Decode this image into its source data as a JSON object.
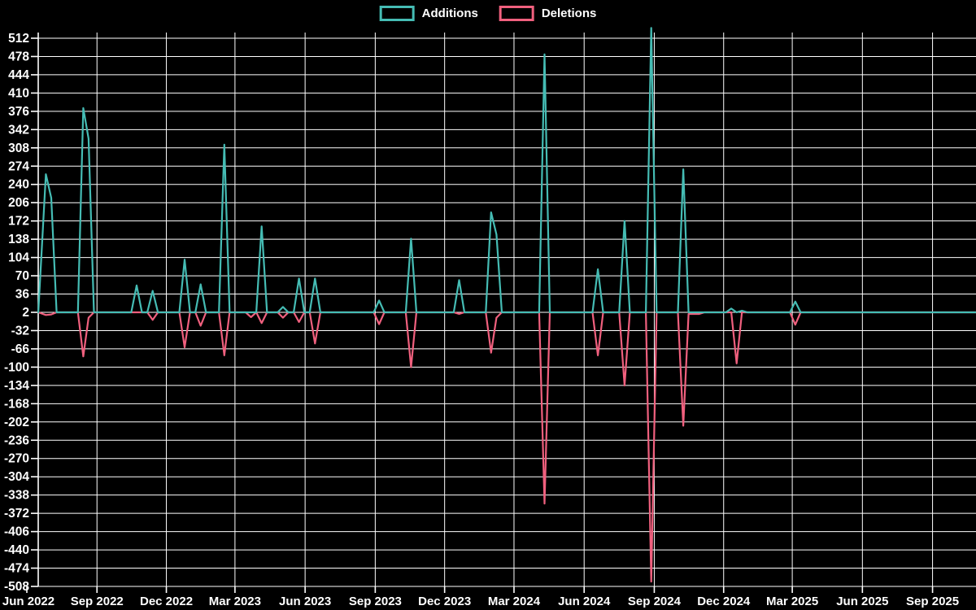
{
  "legend": {
    "additions_label": "Additions",
    "deletions_label": "Deletions"
  },
  "colors": {
    "background": "#000000",
    "grid": "#ffffff",
    "text": "#ffffff",
    "additions": "#45bcb4",
    "deletions": "#f0607e"
  },
  "chart_data": {
    "type": "line",
    "title": "",
    "xlabel": "",
    "ylabel": "",
    "legend_position": "top-center",
    "grid": true,
    "y_ticks": [
      512,
      478,
      444,
      410,
      376,
      342,
      308,
      274,
      240,
      206,
      172,
      138,
      104,
      70,
      36,
      2,
      -32,
      -66,
      -100,
      -134,
      -168,
      -202,
      -236,
      -270,
      -304,
      -338,
      -372,
      -406,
      -440,
      -474,
      -508
    ],
    "ylim": [
      -508,
      512
    ],
    "x_ticks": [
      {
        "label": "Jun 2022",
        "date": "2022-06-01"
      },
      {
        "label": "Sep 2022",
        "date": "2022-09-01"
      },
      {
        "label": "Dec 2022",
        "date": "2022-12-01"
      },
      {
        "label": "Mar 2023",
        "date": "2023-03-01"
      },
      {
        "label": "Jun 2023",
        "date": "2023-06-01"
      },
      {
        "label": "Sep 2023",
        "date": "2023-09-01"
      },
      {
        "label": "Dec 2023",
        "date": "2023-12-01"
      },
      {
        "label": "Mar 2024",
        "date": "2024-03-01"
      },
      {
        "label": "Jun 2024",
        "date": "2024-06-01"
      },
      {
        "label": "Sep 2024",
        "date": "2024-09-01"
      },
      {
        "label": "Dec 2024",
        "date": "2024-12-01"
      },
      {
        "label": "Mar 2025",
        "date": "2025-03-01"
      },
      {
        "label": "Jun 2025",
        "date": "2025-06-01"
      },
      {
        "label": "Sep 2025",
        "date": "2025-09-01"
      }
    ],
    "x_range": {
      "start": "2022-06-01",
      "end": "2025-10-28",
      "data_start": "2022-06-16"
    },
    "series": [
      {
        "name": "Additions",
        "key": "a",
        "color": "#45bcb4"
      },
      {
        "name": "Deletions",
        "key": "d",
        "color": "#f0607e"
      }
    ],
    "baseline": 0,
    "points": [
      {
        "date": "2022-06-16",
        "a": 0,
        "d": 0
      },
      {
        "date": "2022-06-26",
        "a": 257,
        "d": -5
      },
      {
        "date": "2022-07-03",
        "a": 213,
        "d": -4
      },
      {
        "date": "2022-07-10",
        "a": 0,
        "d": 0
      },
      {
        "date": "2022-08-07",
        "a": 0,
        "d": 0
      },
      {
        "date": "2022-08-14",
        "a": 380,
        "d": -82
      },
      {
        "date": "2022-08-21",
        "a": 323,
        "d": -10
      },
      {
        "date": "2022-08-28",
        "a": 0,
        "d": 0
      },
      {
        "date": "2022-10-16",
        "a": 0,
        "d": 0
      },
      {
        "date": "2022-10-23",
        "a": 50,
        "d": 0
      },
      {
        "date": "2022-10-30",
        "a": 0,
        "d": 0
      },
      {
        "date": "2022-11-06",
        "a": 0,
        "d": 0
      },
      {
        "date": "2022-11-13",
        "a": 40,
        "d": -14
      },
      {
        "date": "2022-11-20",
        "a": 0,
        "d": 0
      },
      {
        "date": "2022-12-18",
        "a": 0,
        "d": 0
      },
      {
        "date": "2022-12-25",
        "a": 98,
        "d": -65
      },
      {
        "date": "2023-01-01",
        "a": 0,
        "d": 0
      },
      {
        "date": "2023-01-08",
        "a": 0,
        "d": 0
      },
      {
        "date": "2023-01-15",
        "a": 52,
        "d": -25
      },
      {
        "date": "2023-01-22",
        "a": 0,
        "d": 0
      },
      {
        "date": "2023-02-08",
        "a": 0,
        "d": 0
      },
      {
        "date": "2023-02-15",
        "a": 312,
        "d": -80
      },
      {
        "date": "2023-02-22",
        "a": 0,
        "d": 0
      },
      {
        "date": "2023-03-15",
        "a": 0,
        "d": 0
      },
      {
        "date": "2023-03-22",
        "a": 0,
        "d": -9
      },
      {
        "date": "2023-03-29",
        "a": 0,
        "d": 0
      },
      {
        "date": "2023-04-05",
        "a": 160,
        "d": -20
      },
      {
        "date": "2023-04-12",
        "a": 0,
        "d": 0
      },
      {
        "date": "2023-04-26",
        "a": 0,
        "d": 0
      },
      {
        "date": "2023-05-03",
        "a": 10,
        "d": -10
      },
      {
        "date": "2023-05-10",
        "a": 0,
        "d": 0
      },
      {
        "date": "2023-05-17",
        "a": 0,
        "d": 0
      },
      {
        "date": "2023-05-24",
        "a": 63,
        "d": -18
      },
      {
        "date": "2023-05-31",
        "a": 0,
        "d": 0
      },
      {
        "date": "2023-06-07",
        "a": 0,
        "d": 0
      },
      {
        "date": "2023-06-14",
        "a": 63,
        "d": -58
      },
      {
        "date": "2023-06-21",
        "a": 0,
        "d": 0
      },
      {
        "date": "2023-08-30",
        "a": 0,
        "d": 0
      },
      {
        "date": "2023-09-06",
        "a": 22,
        "d": -22
      },
      {
        "date": "2023-09-13",
        "a": 0,
        "d": 0
      },
      {
        "date": "2023-10-11",
        "a": 0,
        "d": 0
      },
      {
        "date": "2023-10-18",
        "a": 137,
        "d": -102
      },
      {
        "date": "2023-10-25",
        "a": 0,
        "d": 0
      },
      {
        "date": "2023-12-13",
        "a": 0,
        "d": 0
      },
      {
        "date": "2023-12-20",
        "a": 60,
        "d": -3
      },
      {
        "date": "2023-12-27",
        "a": 0,
        "d": 0
      },
      {
        "date": "2024-01-24",
        "a": 0,
        "d": 0
      },
      {
        "date": "2024-01-31",
        "a": 186,
        "d": -75
      },
      {
        "date": "2024-02-07",
        "a": 145,
        "d": -10
      },
      {
        "date": "2024-02-14",
        "a": 0,
        "d": 0
      },
      {
        "date": "2024-04-03",
        "a": 0,
        "d": 0
      },
      {
        "date": "2024-04-10",
        "a": 480,
        "d": -356
      },
      {
        "date": "2024-04-17",
        "a": 0,
        "d": 0
      },
      {
        "date": "2024-06-12",
        "a": 0,
        "d": 0
      },
      {
        "date": "2024-06-19",
        "a": 80,
        "d": -80
      },
      {
        "date": "2024-06-26",
        "a": 0,
        "d": 0
      },
      {
        "date": "2024-07-17",
        "a": 0,
        "d": 0
      },
      {
        "date": "2024-07-24",
        "a": 170,
        "d": -136
      },
      {
        "date": "2024-07-31",
        "a": 0,
        "d": 0
      },
      {
        "date": "2024-08-21",
        "a": 0,
        "d": 0
      },
      {
        "date": "2024-08-28",
        "a": 529,
        "d": -501
      },
      {
        "date": "2024-09-04",
        "a": 0,
        "d": 0
      },
      {
        "date": "2024-10-02",
        "a": 0,
        "d": 0
      },
      {
        "date": "2024-10-09",
        "a": 266,
        "d": -211
      },
      {
        "date": "2024-10-16",
        "a": 0,
        "d": -3
      },
      {
        "date": "2024-10-30",
        "a": 0,
        "d": -3
      },
      {
        "date": "2024-11-06",
        "a": 0,
        "d": 0
      },
      {
        "date": "2024-12-04",
        "a": 0,
        "d": 0
      },
      {
        "date": "2024-12-11",
        "a": 7,
        "d": 0
      },
      {
        "date": "2024-12-18",
        "a": 0,
        "d": -95
      },
      {
        "date": "2024-12-25",
        "a": 3,
        "d": 0
      },
      {
        "date": "2025-01-01",
        "a": 0,
        "d": 0
      },
      {
        "date": "2025-02-26",
        "a": 0,
        "d": 0
      },
      {
        "date": "2025-03-05",
        "a": 20,
        "d": -23
      },
      {
        "date": "2025-03-12",
        "a": 0,
        "d": 0
      },
      {
        "date": "2025-10-28",
        "a": 0,
        "d": 0
      }
    ]
  }
}
